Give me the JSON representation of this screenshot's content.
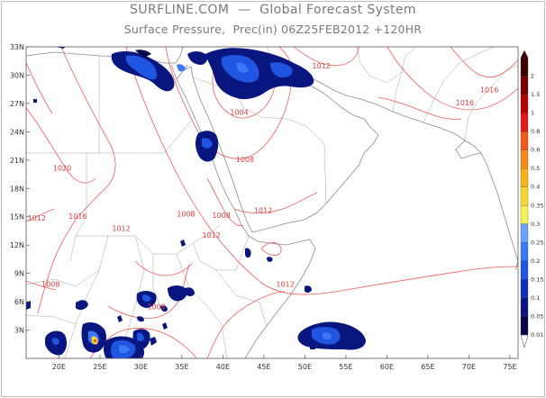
{
  "header": {
    "brand_line": "SURFLINE.COM  —  Global Forecast System",
    "product_line": "Surface Pressure,  Prec(in) 06Z25FEB2012 +120HR"
  },
  "map": {
    "region": "Arabian Sea / Horn of Africa",
    "lon_range": [
      16,
      76
    ],
    "lat_range": [
      0,
      33
    ],
    "lat_labels": [
      "33N",
      "30N",
      "27N",
      "24N",
      "21N",
      "18N",
      "15N",
      "12N",
      "9N",
      "6N",
      "3N"
    ],
    "lat_values": [
      33,
      30,
      27,
      24,
      21,
      18,
      15,
      12,
      9,
      6,
      3
    ],
    "lon_labels": [
      "20E",
      "25E",
      "30E",
      "35E",
      "40E",
      "45E",
      "50E",
      "55E",
      "60E",
      "65E",
      "70E",
      "75E"
    ],
    "lon_values": [
      20,
      25,
      30,
      35,
      40,
      45,
      50,
      55,
      60,
      65,
      70,
      75
    ],
    "isobar_labels": [
      {
        "text": "1012",
        "lon": 52.0,
        "lat": 30.7
      },
      {
        "text": "1016",
        "lon": 72.5,
        "lat": 28.2
      },
      {
        "text": "1016",
        "lon": 69.5,
        "lat": 26.8
      },
      {
        "text": "1004",
        "lon": 42.0,
        "lat": 25.8
      },
      {
        "text": "1008",
        "lon": 42.7,
        "lat": 20.8
      },
      {
        "text": "1020",
        "lon": 20.4,
        "lat": 19.9
      },
      {
        "text": "1012",
        "lon": 17.3,
        "lat": 14.6
      },
      {
        "text": "1016",
        "lon": 22.3,
        "lat": 14.8
      },
      {
        "text": "1008",
        "lon": 35.5,
        "lat": 15.0
      },
      {
        "text": "1008",
        "lon": 39.8,
        "lat": 14.9
      },
      {
        "text": "1012",
        "lon": 44.9,
        "lat": 15.4
      },
      {
        "text": "1012",
        "lon": 27.6,
        "lat": 13.5
      },
      {
        "text": "1012",
        "lon": 38.6,
        "lat": 12.8
      },
      {
        "text": "1008",
        "lon": 19.0,
        "lat": 7.6
      },
      {
        "text": "1008",
        "lon": 31.9,
        "lat": 5.2
      },
      {
        "text": "1012",
        "lon": 47.6,
        "lat": 7.6
      }
    ]
  },
  "colorbar": {
    "labels": [
      "2",
      "1.5",
      "1",
      "0.8",
      "0.6",
      "0.5",
      "0.4",
      "0.35",
      "0.3",
      "0.25",
      "0.2",
      "0.15",
      "0.1",
      "0.05",
      "0.01"
    ],
    "colors": [
      "#3a0000",
      "#7a0000",
      "#b50000",
      "#e31a1a",
      "#f25a1a",
      "#f58a1a",
      "#f7b31a",
      "#f5d630",
      "#f5ef5a",
      "#6aa0ff",
      "#3a78f5",
      "#1f55e0",
      "#0f2fb8",
      "#0a1680",
      "#05064a"
    ]
  },
  "colors": {
    "isobar": "#ef5a5a",
    "coast": "#8c8c8c",
    "precip_dark": "#05064a",
    "precip_mid": "#0a1680",
    "precip_light": "#3a78f5",
    "precip_hot": "#f5d630"
  }
}
